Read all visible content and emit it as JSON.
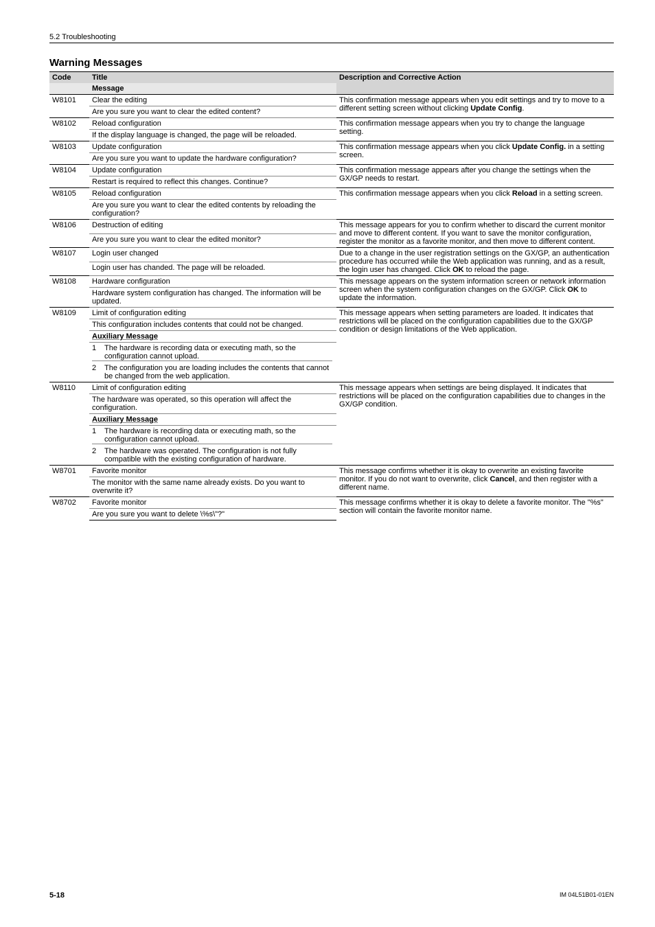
{
  "header": {
    "section": "5.2  Troubleshooting"
  },
  "title": "Warning Messages",
  "columns": {
    "code": "Code",
    "title": "Title",
    "desc": "Description and Corrective Action",
    "message": "Message"
  },
  "aux_label": "Auxiliary Message",
  "rows": {
    "w8101": {
      "code": "W8101",
      "title": "Clear the editing",
      "msg": "Are you sure you want to clear the edited content?",
      "desc": "This confirmation message appears when you edit settings and try to move to a different setting screen without clicking Update Config."
    },
    "w8102": {
      "code": "W8102",
      "title": "Reload configuration",
      "msg": "If the display language is changed, the page will be reloaded.",
      "desc": "This confirmation message appears when you try to change the language setting."
    },
    "w8103": {
      "code": "W8103",
      "title": "Update configuration",
      "msg": "Are you sure you want to update the hardware configuration?",
      "desc": "This confirmation message appears when you click Update Config. in a setting screen."
    },
    "w8104": {
      "code": "W8104",
      "title": "Update configuration",
      "msg": "Restart is required to reflect this changes. Continue?",
      "desc": "This confirmation message appears after you change the settings when the GX/GP needs to restart."
    },
    "w8105": {
      "code": "W8105",
      "title": "Reload configuration",
      "msg": "Are you sure you want to clear the edited contents by reloading the configuration?",
      "desc": "This confirmation message appears when you click Reload in a setting screen."
    },
    "w8106": {
      "code": "W8106",
      "title": "Destruction of editing",
      "msg": "Are you sure you want to clear the edited monitor?",
      "desc": "This message appears for you to confirm whether to discard the current monitor and move to different content. If you want to save the monitor configuration, register the monitor as a favorite monitor, and then move to different content."
    },
    "w8107": {
      "code": "W8107",
      "title": "Login user changed",
      "msg": "Login user has chanded. The page will be reloaded.",
      "desc": "Due to a change in the user registration settings on the GX/GP, an authentication procedure has occurred while the Web application was running, and as a result, the login user has changed. Click OK to reload the page."
    },
    "w8108": {
      "code": "W8108",
      "title": "Hardware configuration",
      "msg": "Hardware system configuration has changed. The information will be updated.",
      "desc": "This message appears on the system information screen or network information screen when the system configuration changes on the GX/GP. Click OK to update the information."
    },
    "w8109": {
      "code": "W8109",
      "title": "Limit of configuration editing",
      "msg": "This configuration includes contents that could not be changed.",
      "aux1": "The hardware is recording data or executing math, so the configuration cannot upload.",
      "aux2": "The configuration you are loading includes the contents that cannot be changed from the web application.",
      "desc": "This message appears when setting parameters are loaded. It indicates that restrictions will be placed on the configuration capabilities due to the GX/GP condition or design limitations of the Web application."
    },
    "w8110": {
      "code": "W8110",
      "title": "Limit of configuration editing",
      "msg": "The hardware was operated, so this operation will affect the configuration.",
      "aux1": "The hardware is recording data or executing math, so the configuration cannot upload.",
      "aux2": "The hardware was operated. The configuration is not fully compatible with the existing configuration of hardware.",
      "desc": "This message appears when settings are being displayed. It indicates that restrictions will be placed on the configuration capabilities due to changes in the GX/GP condition."
    },
    "w8701": {
      "code": "W8701",
      "title": "Favorite monitor",
      "msg": "The monitor with the same name already exists. Do you want to overwrite it?",
      "desc": "This message confirms whether it is okay to overwrite an existing favorite monitor. If you do not want to overwrite, click Cancel, and then register with a different name."
    },
    "w8702": {
      "code": "W8702",
      "title": "Favorite monitor",
      "msg": "Are you sure you want to delete \\%s\\\"?\"",
      "desc": "This message confirms whether it is okay to delete a favorite monitor. The \"%s\" section will contain the favorite monitor name."
    }
  },
  "footer": {
    "page": "5-18",
    "doc": "IM 04L51B01-01EN"
  }
}
